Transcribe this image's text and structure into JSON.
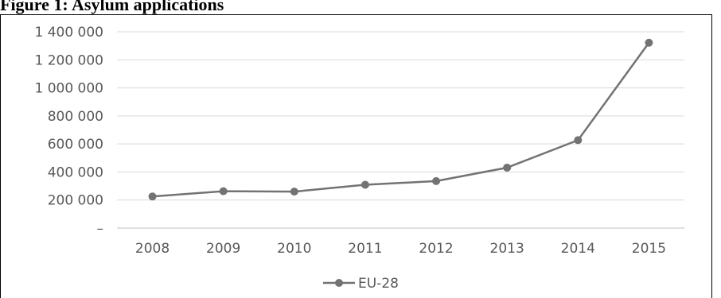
{
  "title": "Figure 1: Asylum applications",
  "chart_data": {
    "type": "line",
    "categories": [
      "2008",
      "2009",
      "2010",
      "2011",
      "2012",
      "2013",
      "2014",
      "2015"
    ],
    "series": [
      {
        "name": "EU-28",
        "values": [
          225000,
          263000,
          260000,
          309000,
          335000,
          431000,
          627000,
          1322000
        ],
        "color": "#737373"
      }
    ],
    "yticks": [
      0,
      200000,
      400000,
      600000,
      800000,
      1000000,
      1200000,
      1400000
    ],
    "ytick_labels": [
      "–",
      "200 000",
      "400 000",
      "600 000",
      "800 000",
      "1 000 000",
      "1 200 000",
      "1 400 000"
    ],
    "ylim": [
      0,
      1400000
    ],
    "grid": true,
    "legend_position": "bottom",
    "colors": {
      "grid": "#d9d9d9",
      "axis": "#bfbfbf",
      "text": "#595959"
    }
  }
}
